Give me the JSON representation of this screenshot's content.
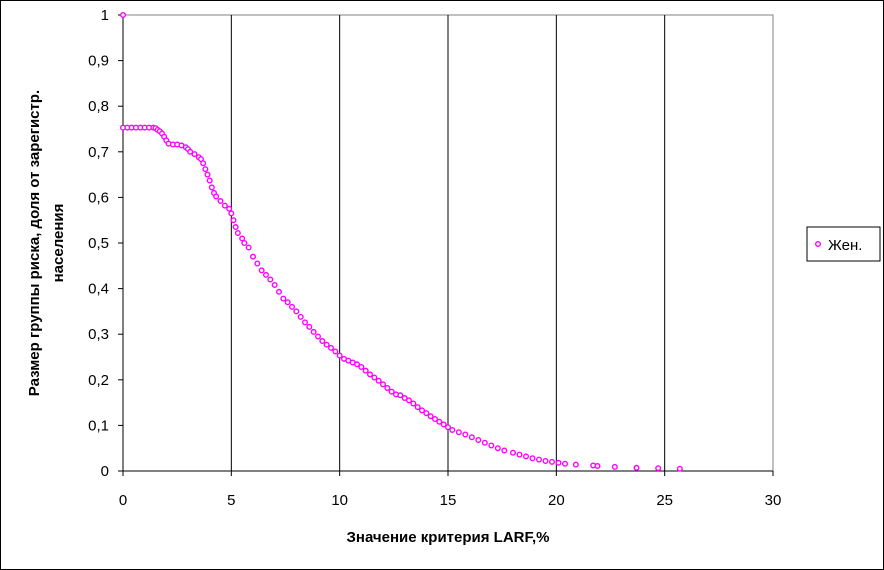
{
  "chart_data": {
    "type": "scatter",
    "xlabel": "Значение критерия LARF,%",
    "ylabel_lines": [
      "Размер группы риска, доля от зарегистр.",
      "населения"
    ],
    "xlim": [
      0,
      30
    ],
    "ylim": [
      0,
      1
    ],
    "x_ticks": [
      "0",
      "5",
      "10",
      "15",
      "20",
      "25",
      "30"
    ],
    "y_ticks": [
      "0",
      "0,1",
      "0,2",
      "0,3",
      "0,4",
      "0,5",
      "0,6",
      "0,7",
      "0,8",
      "0,9",
      "1"
    ],
    "grid": "vertical major lines",
    "legend_position": "right",
    "series": [
      {
        "name": "Жен.",
        "color": "#ff00ff",
        "marker": "open-circle",
        "points": [
          [
            0,
            1.0
          ],
          [
            0,
            0.753
          ],
          [
            0.2,
            0.753
          ],
          [
            0.4,
            0.753
          ],
          [
            0.6,
            0.753
          ],
          [
            0.8,
            0.753
          ],
          [
            1.0,
            0.753
          ],
          [
            1.2,
            0.753
          ],
          [
            1.4,
            0.753
          ],
          [
            1.5,
            0.752
          ],
          [
            1.6,
            0.748
          ],
          [
            1.7,
            0.745
          ],
          [
            1.8,
            0.74
          ],
          [
            1.9,
            0.733
          ],
          [
            2.0,
            0.725
          ],
          [
            2.1,
            0.718
          ],
          [
            2.3,
            0.716
          ],
          [
            2.5,
            0.716
          ],
          [
            2.7,
            0.714
          ],
          [
            2.9,
            0.71
          ],
          [
            3.0,
            0.706
          ],
          [
            3.1,
            0.7
          ],
          [
            3.3,
            0.695
          ],
          [
            3.5,
            0.688
          ],
          [
            3.6,
            0.684
          ],
          [
            3.7,
            0.675
          ],
          [
            3.8,
            0.662
          ],
          [
            3.9,
            0.65
          ],
          [
            4.0,
            0.637
          ],
          [
            4.1,
            0.622
          ],
          [
            4.2,
            0.61
          ],
          [
            4.3,
            0.602
          ],
          [
            4.5,
            0.592
          ],
          [
            4.7,
            0.582
          ],
          [
            4.9,
            0.575
          ],
          [
            5.0,
            0.565
          ],
          [
            5.1,
            0.55
          ],
          [
            5.2,
            0.535
          ],
          [
            5.3,
            0.522
          ],
          [
            5.5,
            0.51
          ],
          [
            5.6,
            0.5
          ],
          [
            5.8,
            0.49
          ],
          [
            6.0,
            0.47
          ],
          [
            6.2,
            0.455
          ],
          [
            6.4,
            0.44
          ],
          [
            6.6,
            0.43
          ],
          [
            6.8,
            0.42
          ],
          [
            7.0,
            0.408
          ],
          [
            7.2,
            0.393
          ],
          [
            7.4,
            0.378
          ],
          [
            7.6,
            0.37
          ],
          [
            7.8,
            0.36
          ],
          [
            8.0,
            0.35
          ],
          [
            8.2,
            0.338
          ],
          [
            8.4,
            0.326
          ],
          [
            8.6,
            0.316
          ],
          [
            8.8,
            0.305
          ],
          [
            9.0,
            0.295
          ],
          [
            9.2,
            0.285
          ],
          [
            9.4,
            0.277
          ],
          [
            9.6,
            0.27
          ],
          [
            9.8,
            0.262
          ],
          [
            10.0,
            0.253
          ],
          [
            10.2,
            0.246
          ],
          [
            10.4,
            0.242
          ],
          [
            10.6,
            0.238
          ],
          [
            10.8,
            0.234
          ],
          [
            11.0,
            0.228
          ],
          [
            11.2,
            0.22
          ],
          [
            11.4,
            0.212
          ],
          [
            11.6,
            0.205
          ],
          [
            11.8,
            0.198
          ],
          [
            12.0,
            0.19
          ],
          [
            12.2,
            0.182
          ],
          [
            12.4,
            0.174
          ],
          [
            12.6,
            0.168
          ],
          [
            12.8,
            0.166
          ],
          [
            13.0,
            0.16
          ],
          [
            13.2,
            0.155
          ],
          [
            13.4,
            0.148
          ],
          [
            13.6,
            0.14
          ],
          [
            13.8,
            0.133
          ],
          [
            14.0,
            0.127
          ],
          [
            14.2,
            0.12
          ],
          [
            14.4,
            0.114
          ],
          [
            14.6,
            0.108
          ],
          [
            14.8,
            0.102
          ],
          [
            15.0,
            0.096
          ],
          [
            15.2,
            0.09
          ],
          [
            15.5,
            0.085
          ],
          [
            15.8,
            0.08
          ],
          [
            16.1,
            0.074
          ],
          [
            16.4,
            0.068
          ],
          [
            16.7,
            0.062
          ],
          [
            17.0,
            0.056
          ],
          [
            17.3,
            0.05
          ],
          [
            17.6,
            0.045
          ],
          [
            18.0,
            0.04
          ],
          [
            18.3,
            0.036
          ],
          [
            18.6,
            0.032
          ],
          [
            18.9,
            0.028
          ],
          [
            19.2,
            0.025
          ],
          [
            19.5,
            0.022
          ],
          [
            19.8,
            0.02
          ],
          [
            20.1,
            0.018
          ],
          [
            20.4,
            0.016
          ],
          [
            20.9,
            0.014
          ],
          [
            21.7,
            0.012
          ],
          [
            21.9,
            0.011
          ],
          [
            22.7,
            0.009
          ],
          [
            23.7,
            0.007
          ],
          [
            24.7,
            0.006
          ],
          [
            25.7,
            0.005
          ]
        ]
      }
    ]
  }
}
